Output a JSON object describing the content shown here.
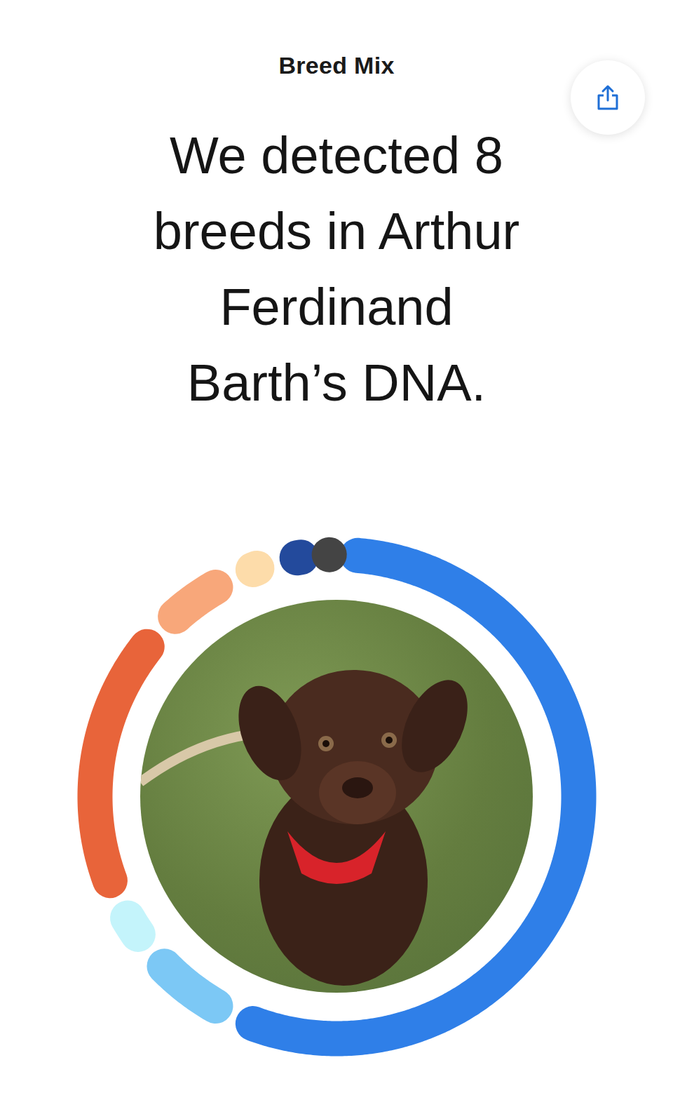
{
  "header": {
    "label": "Breed Mix"
  },
  "chart_data": {
    "type": "donut",
    "title": "We detected 8 breeds in Arthur Ferdinand Barth’s DNA.",
    "categories": [
      null,
      null,
      null,
      null,
      null,
      null,
      null,
      null
    ],
    "values": [
      57,
      7,
      4,
      19,
      6,
      3,
      3,
      1
    ],
    "colors": [
      "#2f7fe8",
      "#7cc8f5",
      "#c4f4fb",
      "#e8643a",
      "#f8a77a",
      "#fddcaa",
      "#234a9c",
      "#444444"
    ]
  }
}
